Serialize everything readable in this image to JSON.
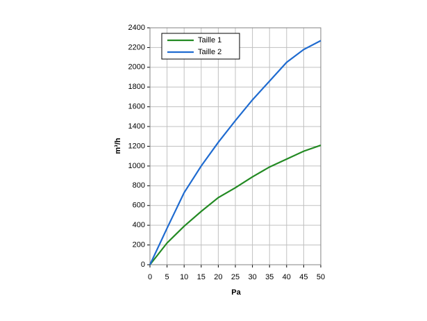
{
  "chart_data": {
    "type": "line",
    "x_label": "Pa",
    "y_label": "m³/h",
    "x": [
      0,
      5,
      10,
      15,
      20,
      25,
      30,
      35,
      40,
      45,
      50
    ],
    "series": [
      {
        "name": "Taille 1",
        "color": "#238a23",
        "values": [
          0,
          220,
          390,
          540,
          680,
          780,
          890,
          990,
          1070,
          1150,
          1210
        ]
      },
      {
        "name": "Taille 2",
        "color": "#1f6bd0",
        "values": [
          0,
          370,
          730,
          1000,
          1240,
          1460,
          1670,
          1860,
          2050,
          2180,
          2270
        ]
      }
    ],
    "xlim": [
      0,
      50
    ],
    "xticks": [
      0,
      5,
      10,
      15,
      20,
      25,
      30,
      35,
      40,
      45,
      50
    ],
    "ylim": [
      0,
      2400
    ],
    "yticks": [
      0,
      200,
      400,
      600,
      800,
      1000,
      1200,
      1400,
      1600,
      1800,
      2000,
      2200,
      2400
    ],
    "grid": true,
    "legend": "top-left"
  }
}
